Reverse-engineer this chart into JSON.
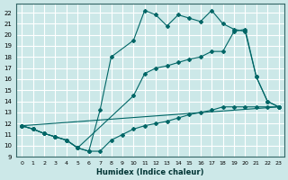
{
  "xlabel": "Humidex (Indice chaleur)",
  "bg_color": "#cce8e8",
  "grid_color": "#ffffff",
  "line_color": "#006666",
  "xlim": [
    -0.5,
    23.5
  ],
  "ylim": [
    9,
    22.8
  ],
  "yticks": [
    9,
    10,
    11,
    12,
    13,
    14,
    15,
    16,
    17,
    18,
    19,
    20,
    21,
    22
  ],
  "xticks": [
    0,
    1,
    2,
    3,
    4,
    5,
    6,
    7,
    8,
    9,
    10,
    11,
    12,
    13,
    14,
    15,
    16,
    17,
    18,
    19,
    20,
    21,
    22,
    23
  ],
  "curve1_x": [
    0,
    1,
    2,
    3,
    4,
    5,
    6,
    7,
    8,
    9,
    10,
    11,
    12,
    13,
    14,
    15,
    16,
    17,
    18,
    19,
    20,
    21,
    22,
    23
  ],
  "curve1_y": [
    11.8,
    11.5,
    11.1,
    10.8,
    10.5,
    9.8,
    9.5,
    9.5,
    10.5,
    11.0,
    11.5,
    11.8,
    12.0,
    12.2,
    12.5,
    12.8,
    13.0,
    13.2,
    13.5,
    13.5,
    13.5,
    13.5,
    13.5,
    13.5
  ],
  "curve2_x": [
    0,
    1,
    2,
    3,
    4,
    5,
    6,
    7,
    8,
    10,
    11,
    12,
    13,
    14,
    15,
    16,
    17,
    18,
    19,
    20,
    21,
    22,
    23
  ],
  "curve2_y": [
    11.8,
    11.5,
    11.1,
    10.8,
    10.5,
    9.8,
    9.5,
    13.2,
    18.0,
    19.5,
    22.2,
    21.8,
    20.8,
    21.8,
    21.5,
    21.2,
    22.2,
    21.0,
    20.5,
    20.3,
    16.2,
    14.0,
    13.5
  ],
  "curve3_x": [
    0,
    1,
    2,
    3,
    4,
    5,
    10,
    11,
    12,
    13,
    14,
    15,
    16,
    17,
    18,
    19,
    20,
    21,
    22,
    23
  ],
  "curve3_y": [
    11.8,
    11.5,
    11.1,
    10.8,
    10.5,
    9.8,
    14.5,
    16.5,
    17.0,
    17.2,
    17.5,
    17.8,
    18.0,
    18.5,
    18.5,
    20.3,
    20.5,
    16.2,
    14.0,
    13.5
  ],
  "curve4_x": [
    0,
    23
  ],
  "curve4_y": [
    11.8,
    13.5
  ]
}
